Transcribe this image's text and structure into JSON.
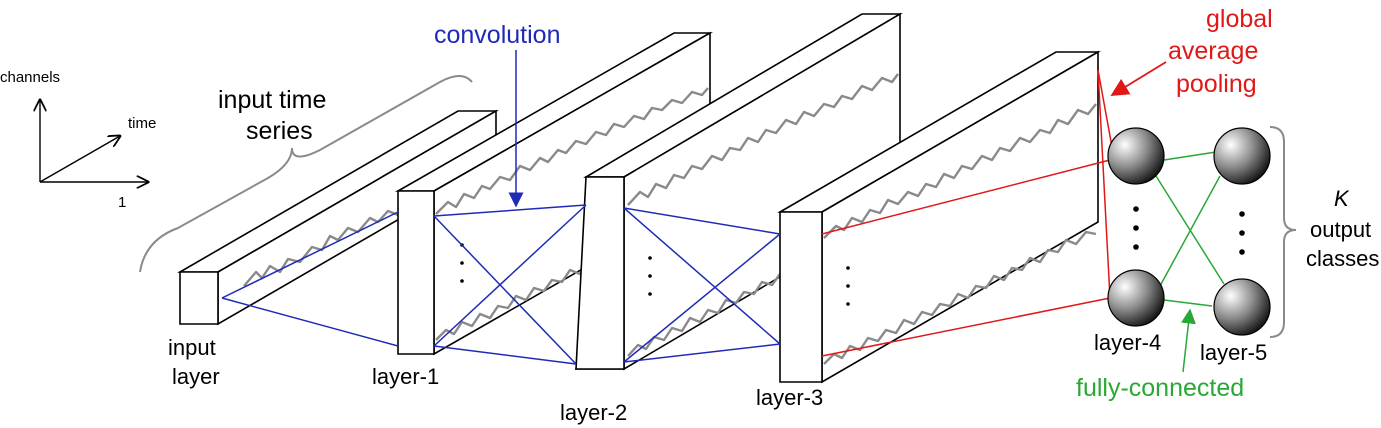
{
  "axes": {
    "vertical": "channels",
    "diagonal": "time",
    "horizontal": "1"
  },
  "labels": {
    "input_series_line1": "input time",
    "input_series_line2": "series",
    "convolution": "convolution",
    "gap_line1": "global",
    "gap_line2": "average",
    "gap_line3": "pooling",
    "input_layer_line1": "input",
    "input_layer_line2": "layer",
    "layer1": "layer-1",
    "layer2": "layer-2",
    "layer3": "layer-3",
    "layer4": "layer-4",
    "layer5": "layer-5",
    "fully_connected": "fully-connected",
    "k": "K",
    "output_line1": "output",
    "output_line2": "classes"
  },
  "colors": {
    "convolution": "#1f2bb5",
    "global_average_pooling": "#e01818",
    "fully_connected": "#2aa836",
    "series": "#8a8a8a"
  }
}
